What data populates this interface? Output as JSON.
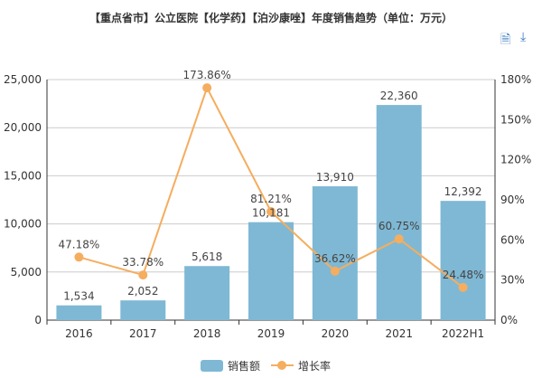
{
  "toolbar": {
    "data_view_icon": "document-icon",
    "download_icon": "download-icon"
  },
  "chart_data": {
    "type": "bar+line",
    "title": "【重点省市】公立医院【化学药】【泊沙康唑】年度销售趋势（单位：万元）",
    "categories": [
      "2016",
      "2017",
      "2018",
      "2019",
      "2020",
      "2021",
      "2022H1"
    ],
    "series": [
      {
        "name": "销售额",
        "type": "bar",
        "axis": "left",
        "color": "#7fb8d4",
        "values": [
          1534,
          2052,
          5618,
          10181,
          13910,
          22360,
          12392
        ],
        "labels": [
          "1,534",
          "2,052",
          "5,618",
          "10,181",
          "13,910",
          "22,360",
          "12,392"
        ]
      },
      {
        "name": "增长率",
        "type": "line",
        "axis": "right",
        "color": "#f5ad5f",
        "values": [
          47.18,
          33.78,
          173.86,
          81.21,
          36.62,
          60.75,
          24.48
        ],
        "labels": [
          "47.18%",
          "33.78%",
          "173.86%",
          "81.21%",
          "36.62%",
          "60.75%",
          "24.48%"
        ]
      }
    ],
    "y_left": {
      "range": [
        0,
        25000
      ],
      "ticks": [
        "0",
        "5,000",
        "10,000",
        "15,000",
        "20,000",
        "25,000"
      ]
    },
    "y_right": {
      "range": [
        0,
        180
      ],
      "ticks": [
        "0%",
        "30%",
        "60%",
        "90%",
        "120%",
        "150%",
        "180%"
      ]
    },
    "grid": true,
    "legend_position": "bottom"
  }
}
